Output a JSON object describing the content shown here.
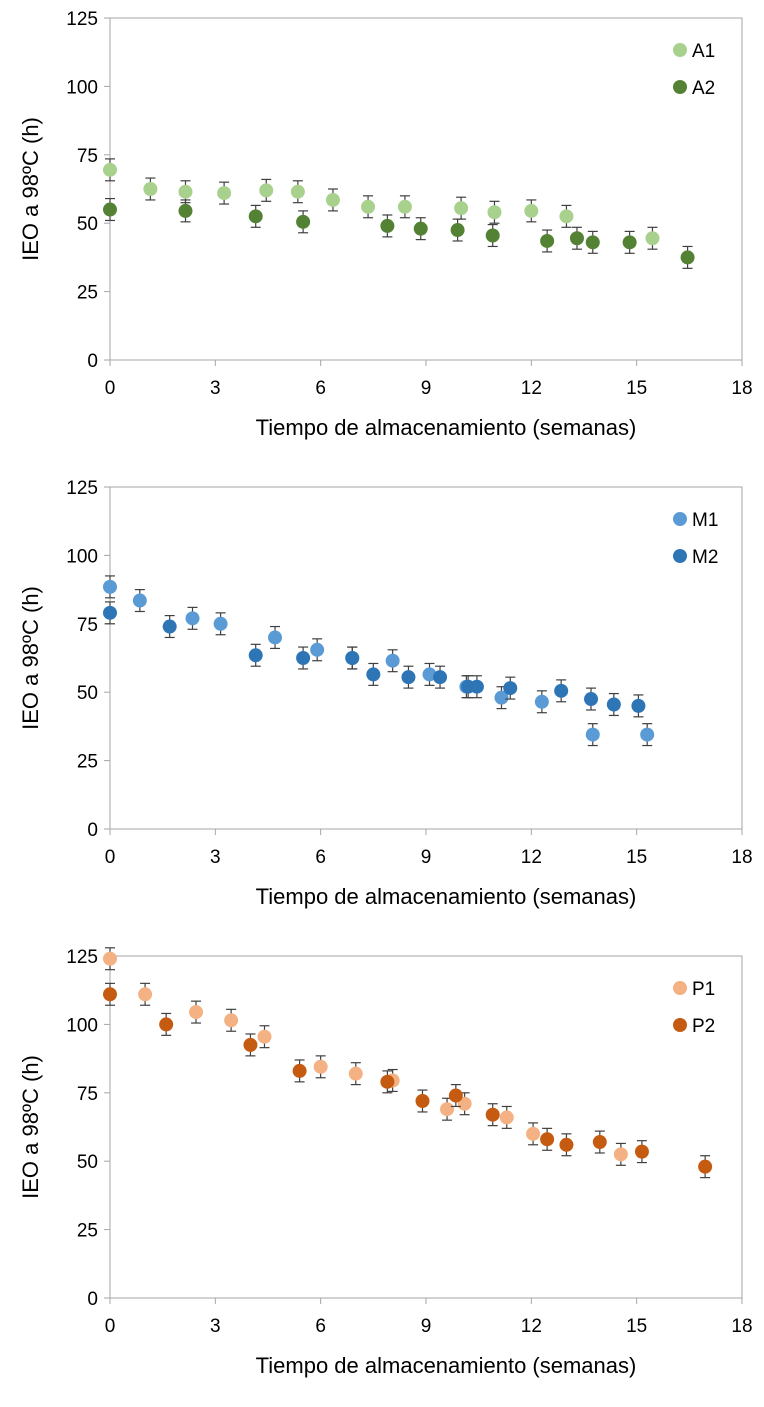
{
  "chart_data": [
    {
      "type": "scatter",
      "xlabel": "Tiempo de almacenamiento (semanas)",
      "ylabel": "IEO a 98ºC (h)",
      "xlim": [
        0,
        18
      ],
      "ylim": [
        0,
        125
      ],
      "xticks": [
        "0",
        "3",
        "6",
        "9",
        "12",
        "15",
        "18"
      ],
      "yticks": [
        "0",
        "25",
        "50",
        "75",
        "100",
        "125"
      ],
      "grid": false,
      "legend": "top-right",
      "error_bars": true,
      "series": [
        {
          "name": "A1",
          "color": "#a9d18e",
          "x": [
            0,
            1.15,
            2.15,
            3.25,
            4.45,
            5.35,
            6.35,
            7.35,
            8.4,
            10.0,
            10.95,
            12.0,
            13.0,
            15.45
          ],
          "y": [
            69.5,
            62.5,
            61.5,
            61.0,
            62.0,
            61.5,
            58.5,
            56.0,
            56.0,
            55.5,
            54.0,
            54.5,
            52.5,
            44.5
          ]
        },
        {
          "name": "A2",
          "color": "#548235",
          "x": [
            0,
            2.15,
            4.15,
            5.5,
            7.9,
            8.85,
            9.9,
            10.9,
            12.45,
            13.3,
            13.75,
            14.8,
            16.45
          ],
          "y": [
            55.0,
            54.5,
            52.5,
            50.5,
            49.0,
            48.0,
            47.5,
            45.5,
            43.5,
            44.5,
            43.0,
            43.0,
            37.5
          ]
        }
      ]
    },
    {
      "type": "scatter",
      "xlabel": "Tiempo de almacenamiento (semanas)",
      "ylabel": "IEO a 98ºC (h)",
      "xlim": [
        0,
        18
      ],
      "ylim": [
        0,
        125
      ],
      "xticks": [
        "0",
        "3",
        "6",
        "9",
        "12",
        "15",
        "18"
      ],
      "yticks": [
        "0",
        "25",
        "50",
        "75",
        "100",
        "125"
      ],
      "grid": false,
      "legend": "top-right",
      "error_bars": true,
      "series": [
        {
          "name": "M1",
          "color": "#5b9bd5",
          "x": [
            0,
            0.85,
            2.35,
            3.15,
            4.7,
            5.9,
            6.9,
            8.05,
            9.1,
            10.15,
            11.15,
            12.3,
            13.75,
            15.3
          ],
          "y": [
            88.5,
            83.5,
            77.0,
            75.0,
            70.0,
            65.5,
            62.5,
            61.5,
            56.5,
            52.0,
            48.0,
            46.5,
            34.5,
            34.5
          ]
        },
        {
          "name": "M2",
          "color": "#2e75b6",
          "x": [
            0,
            1.7,
            4.15,
            5.5,
            6.9,
            7.5,
            8.5,
            9.4,
            10.2,
            10.45,
            11.4,
            12.85,
            13.7,
            14.35,
            15.05
          ],
          "y": [
            79.0,
            74.0,
            63.5,
            62.5,
            62.5,
            56.5,
            55.5,
            55.5,
            52.0,
            52.0,
            51.5,
            50.5,
            47.5,
            45.5,
            45.0
          ]
        }
      ]
    },
    {
      "type": "scatter",
      "xlabel": "Tiempo de almacenamiento (semanas)",
      "ylabel": "IEO a 98ºC (h)",
      "xlim": [
        0,
        18
      ],
      "ylim": [
        0,
        125
      ],
      "xticks": [
        "0",
        "3",
        "6",
        "9",
        "12",
        "15",
        "18"
      ],
      "yticks": [
        "0",
        "25",
        "50",
        "75",
        "100",
        "125"
      ],
      "grid": false,
      "legend": "top-right",
      "error_bars": true,
      "series": [
        {
          "name": "P1",
          "color": "#f4b183",
          "x": [
            0,
            1.0,
            2.45,
            3.45,
            4.4,
            6.0,
            7.0,
            8.05,
            9.6,
            10.1,
            11.3,
            12.05,
            14.55
          ],
          "y": [
            124.0,
            111.0,
            104.5,
            101.5,
            95.5,
            84.5,
            82.0,
            79.5,
            69.0,
            71.0,
            66.0,
            60.0,
            52.5
          ]
        },
        {
          "name": "P2",
          "color": "#c55a11",
          "x": [
            0,
            1.6,
            4.0,
            5.4,
            7.9,
            8.9,
            9.85,
            10.9,
            12.45,
            13.0,
            13.95,
            15.15,
            16.95
          ],
          "y": [
            111.0,
            100.0,
            92.5,
            83.0,
            79.0,
            72.0,
            74.0,
            67.0,
            58.0,
            56.0,
            57.0,
            53.5,
            48.0
          ]
        }
      ]
    }
  ]
}
